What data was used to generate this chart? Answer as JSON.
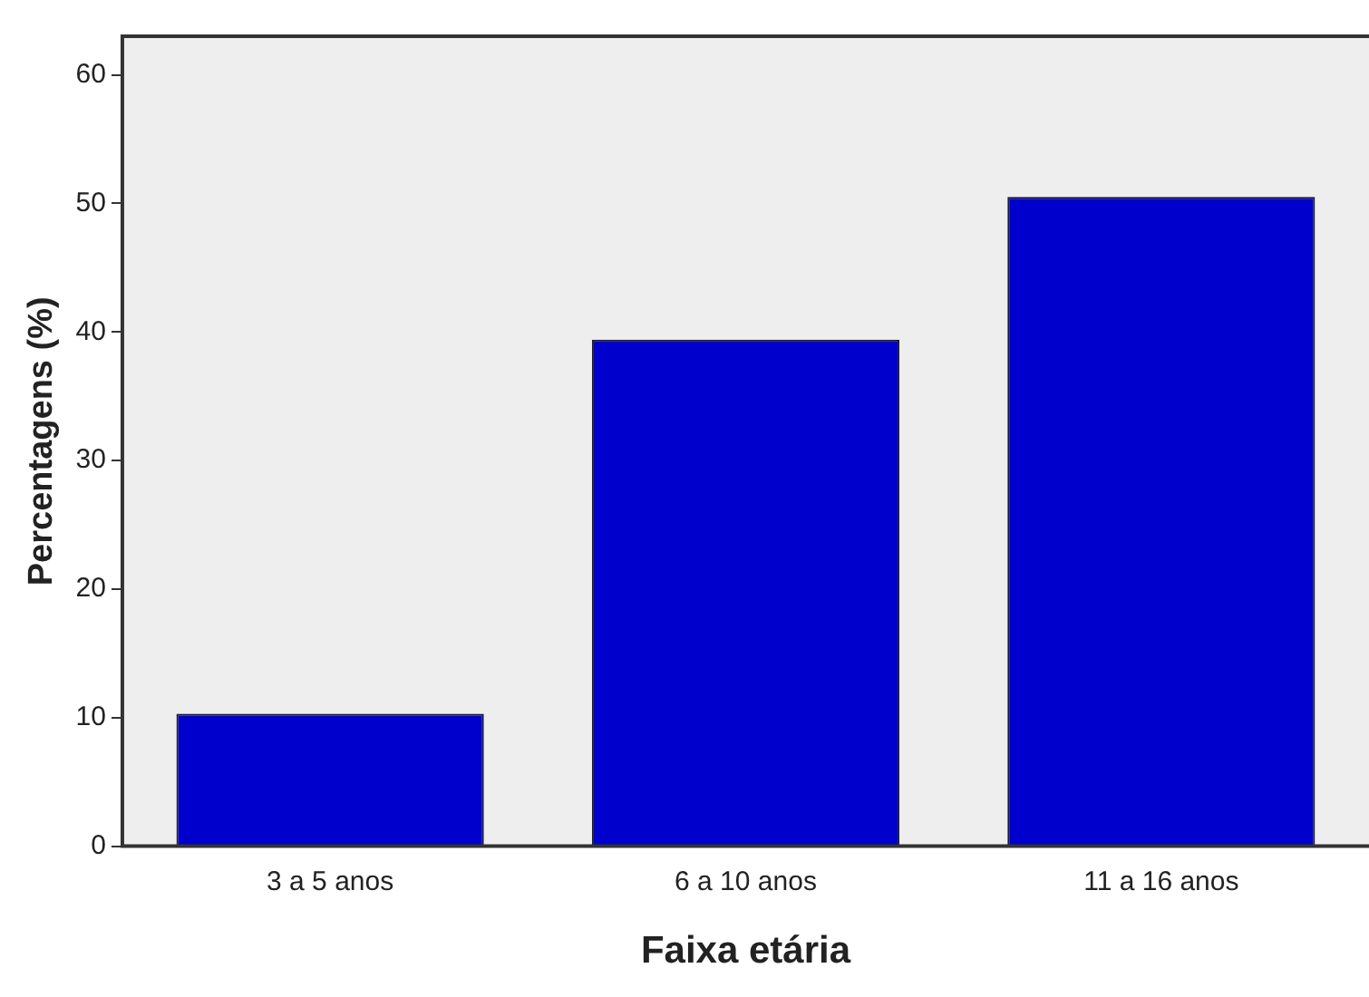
{
  "chart_data": {
    "type": "bar",
    "xlabel": "Faixa etária",
    "ylabel": "Percentagens (%)",
    "categories": [
      "3 a 5 anos",
      "6 a 10 anos",
      "11 a 16 anos"
    ],
    "values": [
      10.3,
      39.4,
      50.5
    ],
    "color": "#0000cc",
    "ylim": [
      0,
      63
    ],
    "yticks": [
      0,
      10,
      20,
      30,
      40,
      50,
      60
    ],
    "grid": false,
    "legend": false
  }
}
